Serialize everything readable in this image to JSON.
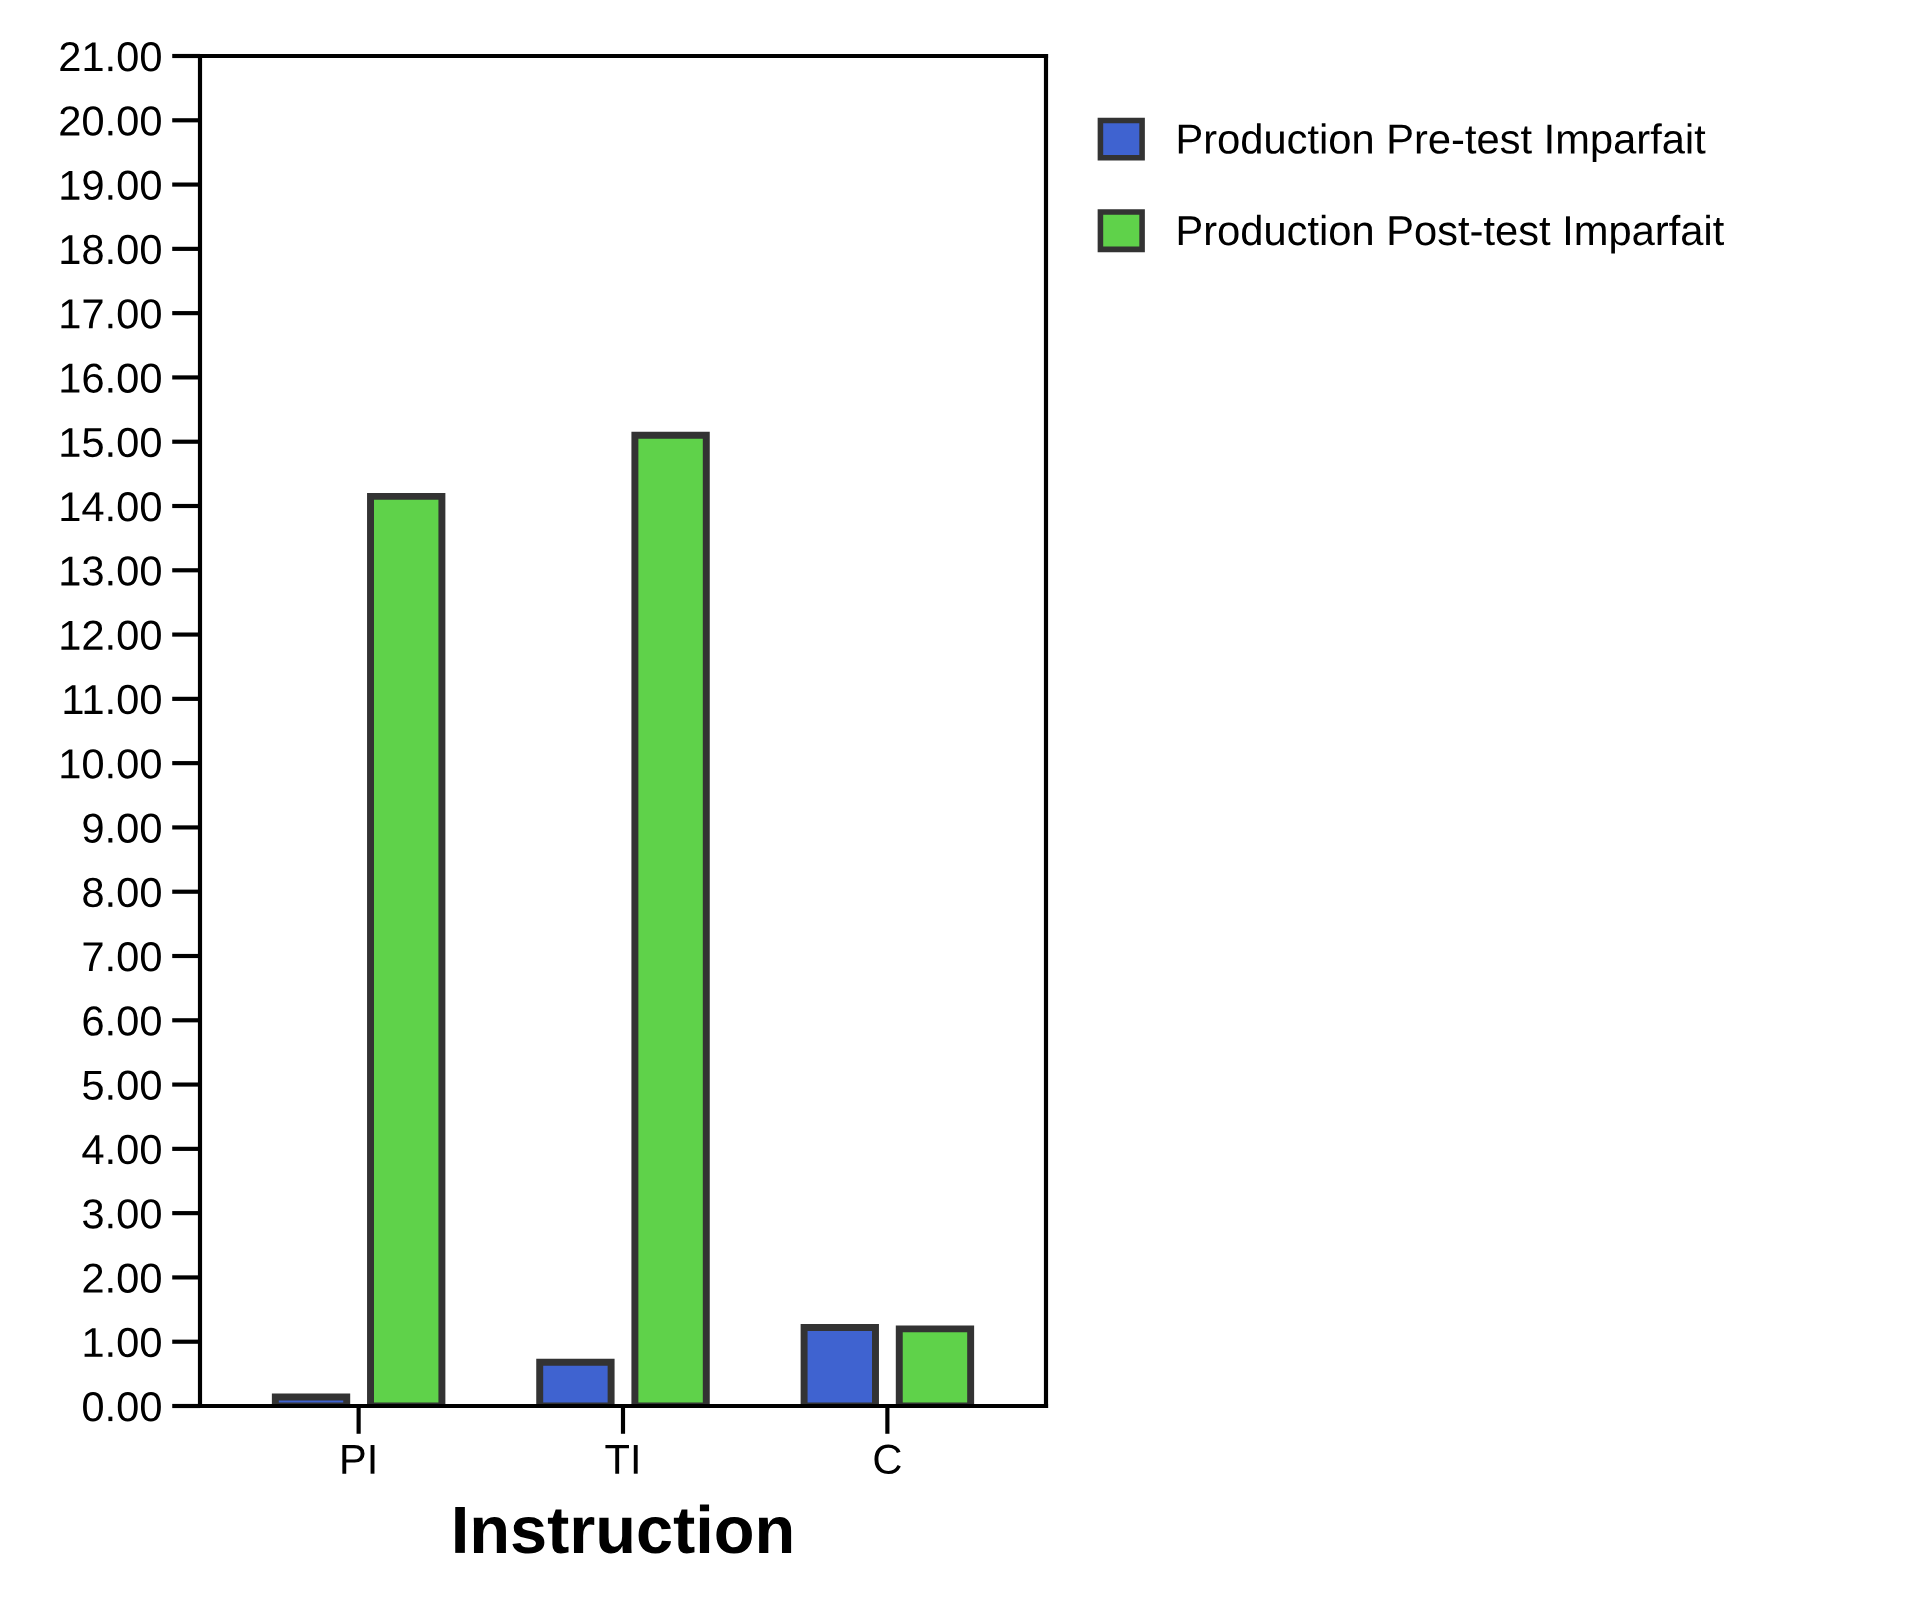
{
  "chart_data": {
    "type": "bar",
    "xlabel": "Instruction",
    "categories": [
      "PI",
      "TI",
      "C"
    ],
    "series": [
      {
        "name": "Production Pre-test Imparfait",
        "color": "#3f63d0",
        "values": [
          0.14,
          0.68,
          1.22
        ]
      },
      {
        "name": "Production Post-test Imparfait",
        "color": "#5fd24a",
        "values": [
          14.15,
          15.1,
          1.2
        ]
      }
    ],
    "ylim": [
      0,
      21
    ],
    "yticks": [
      {
        "value": 0,
        "label": "0.00"
      },
      {
        "value": 1,
        "label": "1.00"
      },
      {
        "value": 2,
        "label": "2.00"
      },
      {
        "value": 3,
        "label": "3.00"
      },
      {
        "value": 4,
        "label": "4.00"
      },
      {
        "value": 5,
        "label": "5.00"
      },
      {
        "value": 6,
        "label": "6.00"
      },
      {
        "value": 7,
        "label": "7.00"
      },
      {
        "value": 8,
        "label": "8.00"
      },
      {
        "value": 9,
        "label": "9.00"
      },
      {
        "value": 10,
        "label": "10.00"
      },
      {
        "value": 11,
        "label": "11.00"
      },
      {
        "value": 12,
        "label": "12.00"
      },
      {
        "value": 13,
        "label": "13.00"
      },
      {
        "value": 14,
        "label": "14.00"
      },
      {
        "value": 15,
        "label": "15.00"
      },
      {
        "value": 16,
        "label": "16.00"
      },
      {
        "value": 17,
        "label": "17.00"
      },
      {
        "value": 18,
        "label": "18.00"
      },
      {
        "value": 19,
        "label": "19.00"
      },
      {
        "value": 20,
        "label": "20.00"
      },
      {
        "value": 21,
        "label": "21.00"
      }
    ],
    "grid": false,
    "legend": "top right"
  }
}
